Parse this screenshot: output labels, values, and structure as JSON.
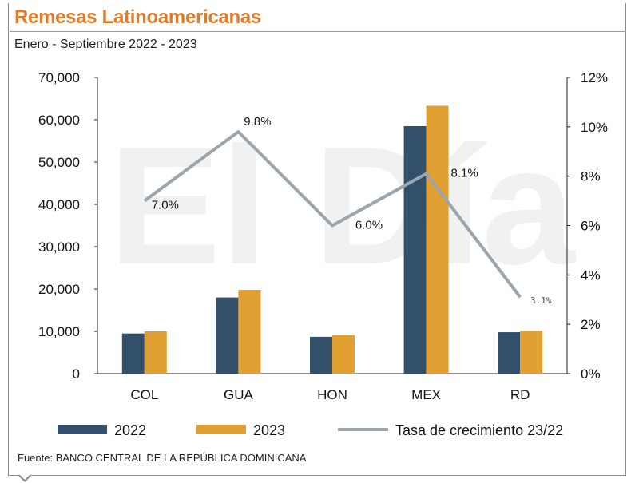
{
  "header": {
    "title": "Remesas Latinoamericanas",
    "subtitle": "Enero - Septiembre 2022 - 2023"
  },
  "watermark": "El Día",
  "source": "Fuente: BANCO CENTRAL DE LA REPÚBLICA DOMINICANA",
  "colors": {
    "title": "#e07b2c",
    "s2022": "#33506b",
    "s2023": "#e0a032",
    "rate": "#9aa5ad"
  },
  "chart_data": {
    "type": "bar",
    "categories": [
      "COL",
      "GUA",
      "HON",
      "MEX",
      "RD"
    ],
    "series": [
      {
        "name": "2022",
        "axis": "left",
        "values": [
          9500,
          18000,
          8700,
          58500,
          9800
        ]
      },
      {
        "name": "2023",
        "axis": "left",
        "values": [
          10000,
          19800,
          9100,
          63300,
          10100
        ]
      },
      {
        "name": "Tasa de crecimiento 23/22",
        "type": "line",
        "axis": "right",
        "values": [
          7.0,
          9.8,
          6.0,
          8.1,
          3.1
        ],
        "labels": [
          "7.0%",
          "9.8%",
          "6.0%",
          "8.1%",
          "3.1%"
        ]
      }
    ],
    "y_left": {
      "range": [
        0,
        70000
      ],
      "ticks": [
        "0",
        "10,000",
        "20,000",
        "30,000",
        "40,000",
        "50,000",
        "60,000",
        "70,000"
      ]
    },
    "y_right": {
      "range": [
        0,
        12
      ],
      "ticks": [
        "0%",
        "2%",
        "4%",
        "6%",
        "8%",
        "10%",
        "12%"
      ]
    },
    "legend_position": "bottom",
    "grid": false
  }
}
